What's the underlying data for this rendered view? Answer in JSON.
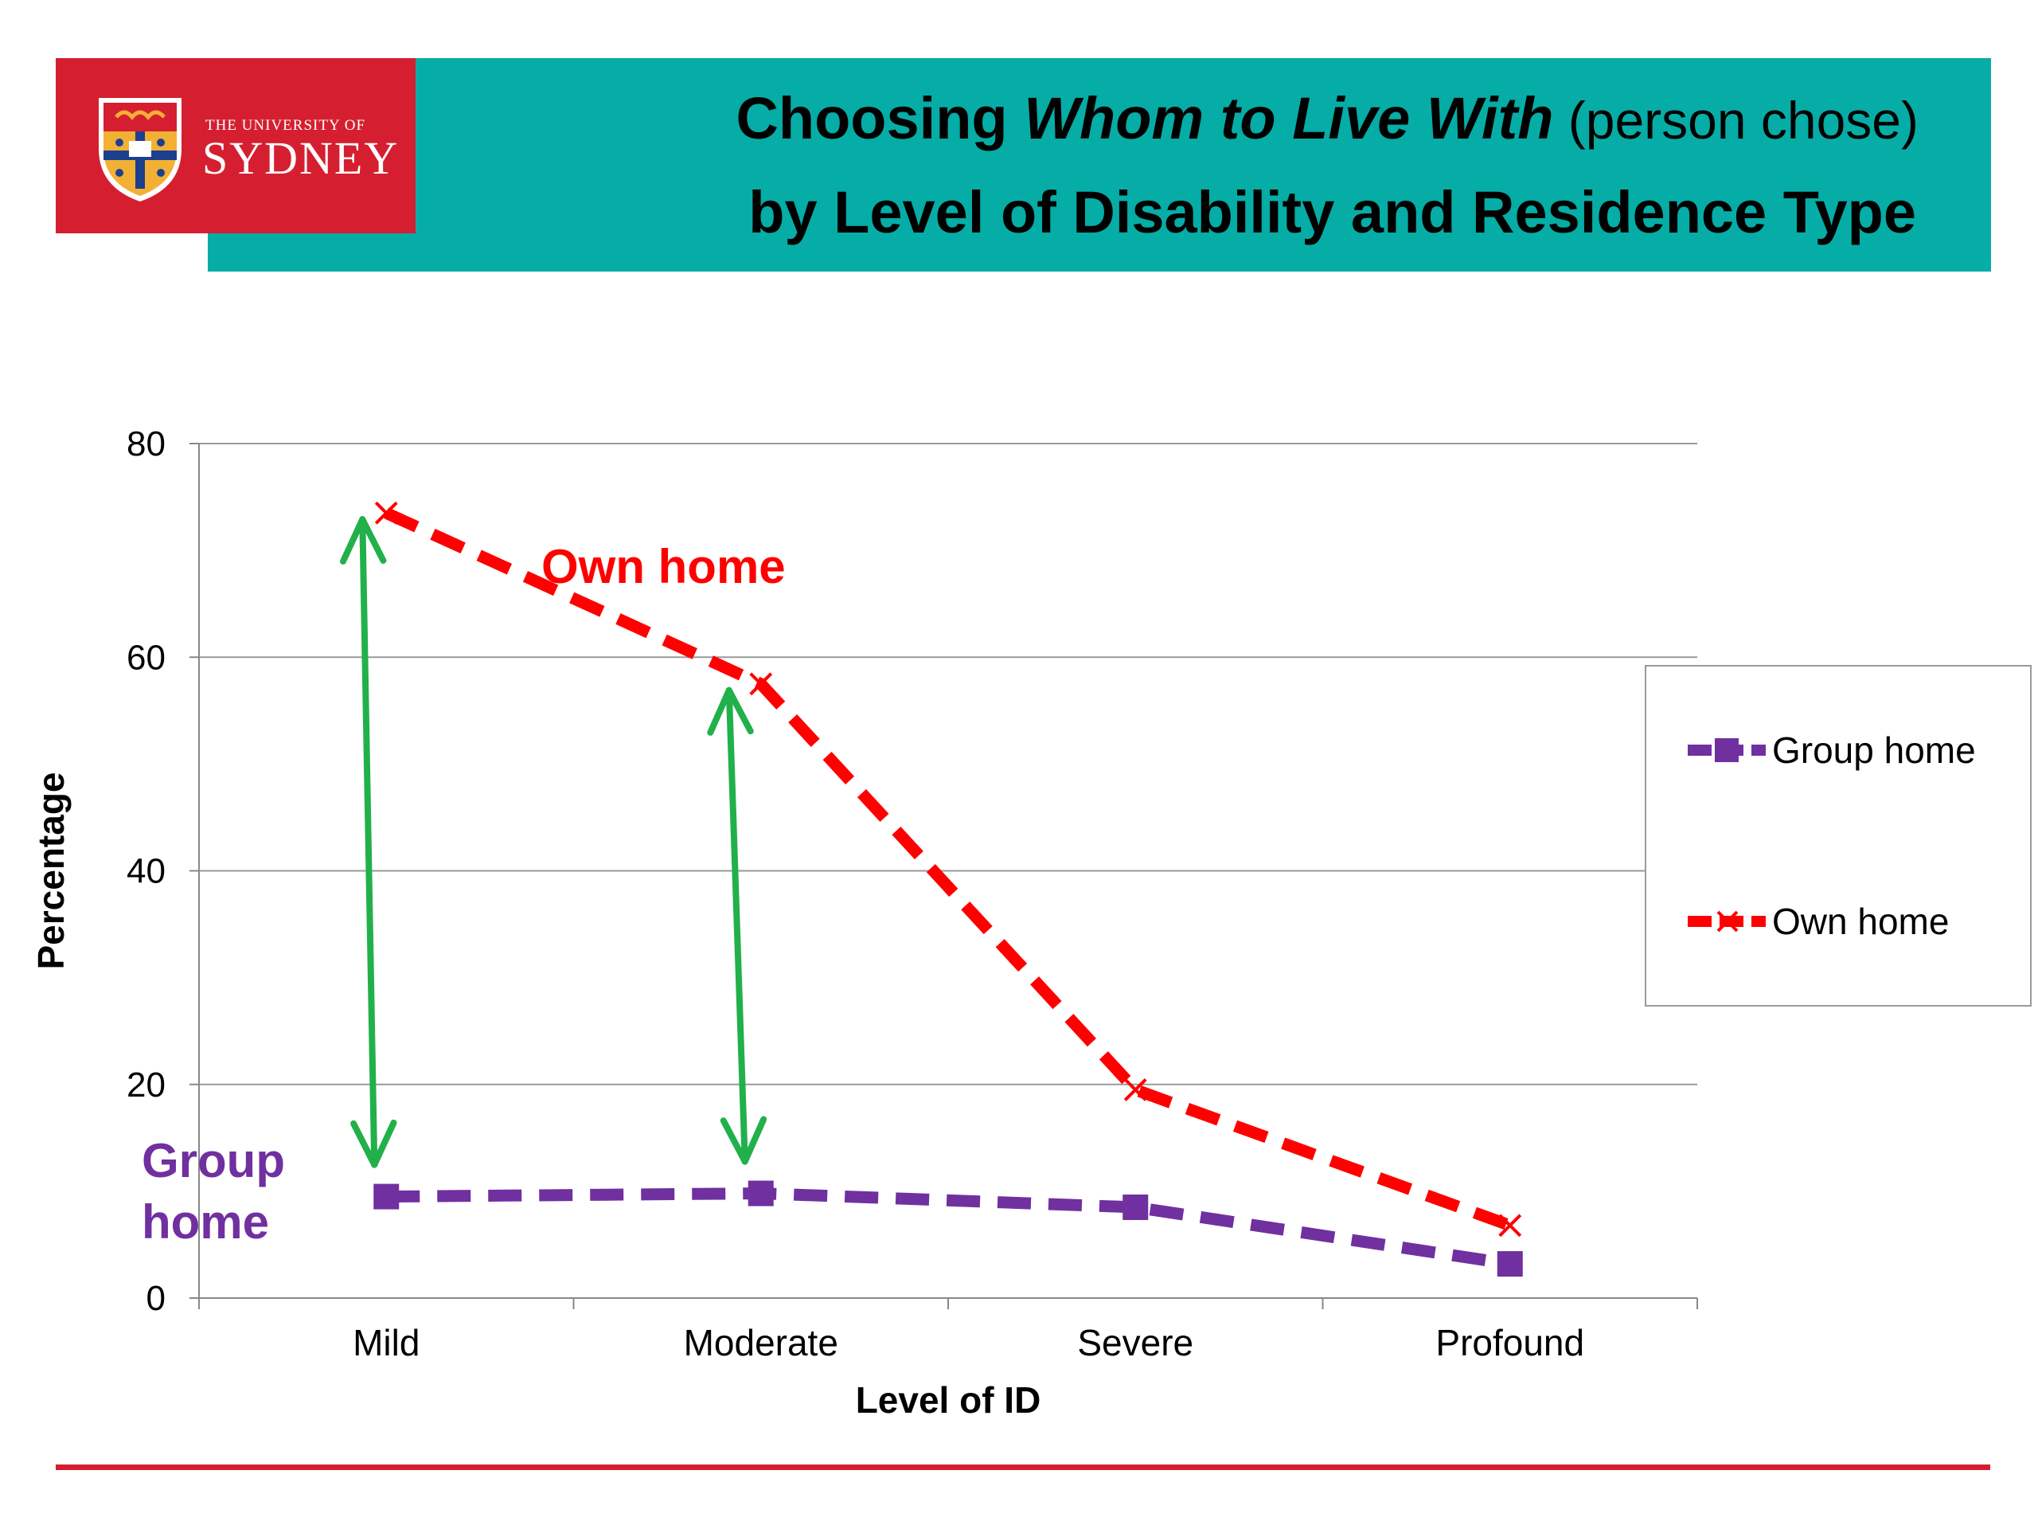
{
  "header": {
    "logo_small_text": "THE UNIVERSITY OF",
    "logo_main_text": "SYDNEY",
    "title_part1": "Choosing ",
    "title_italic": "Whom to Live With",
    "title_paren": " (person chose)",
    "title_line2": "by Level of Disability and Residence Type"
  },
  "colors": {
    "header_teal": "#06aca6",
    "brand_red": "#d51f30",
    "group_home": "#7030a0",
    "own_home": "#ff0000",
    "arrow": "#22b04b"
  },
  "chart_data": {
    "type": "line",
    "categories": [
      "Mild",
      "Moderate",
      "Severe",
      "Profound"
    ],
    "series": [
      {
        "name": "Group home",
        "values": [
          9.5,
          9.8,
          8.5,
          3.2
        ],
        "marker": "square",
        "line": "dashed"
      },
      {
        "name": "Own home",
        "values": [
          73.5,
          57.5,
          19.5,
          6.8
        ],
        "marker": "x",
        "line": "dashed"
      }
    ],
    "xlabel": "Level of ID",
    "ylabel": "Percentage",
    "ylim": [
      0,
      80
    ],
    "yticks": [
      0,
      20,
      40,
      60,
      80
    ],
    "grid": true,
    "legend_position": "right",
    "annotations": {
      "own_home_label": "Own home",
      "group_home_label_line1": "Group",
      "group_home_label_line2": "home"
    },
    "arrows": [
      {
        "category": "Mild",
        "from": 9.5,
        "to": 73.5
      },
      {
        "category": "Moderate",
        "from": 9.8,
        "to": 57.5
      }
    ]
  }
}
